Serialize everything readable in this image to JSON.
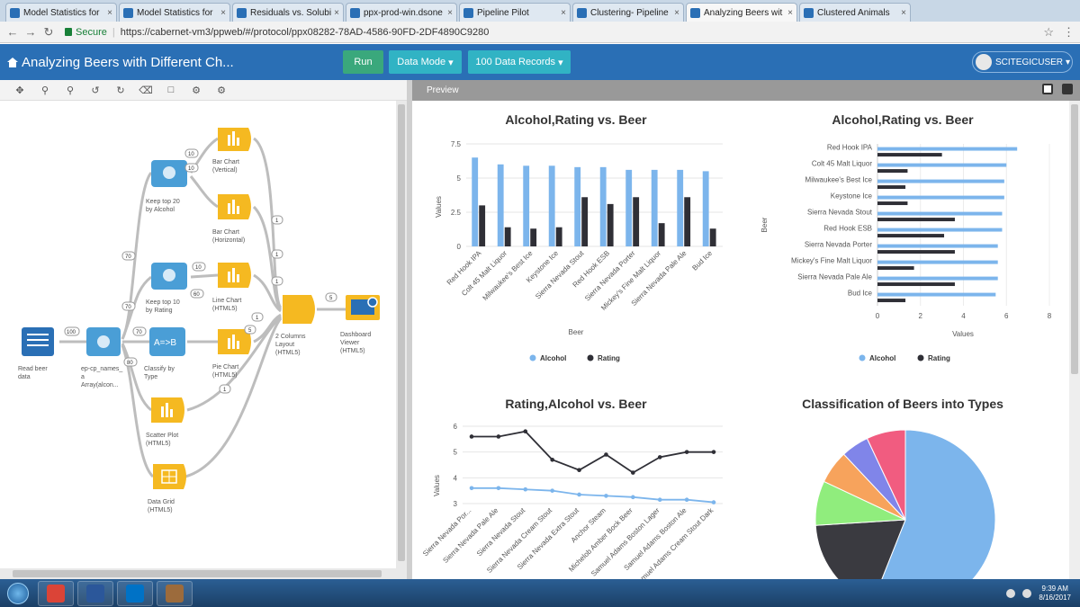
{
  "browser": {
    "tabs": [
      {
        "label": "Model Statistics for"
      },
      {
        "label": "Model Statistics for"
      },
      {
        "label": "Residuals vs. Solubi"
      },
      {
        "label": "ppx-prod-win.dsone"
      },
      {
        "label": "Pipeline Pilot"
      },
      {
        "label": "Clustering- Pipeline"
      },
      {
        "label": "Analyzing Beers wit"
      },
      {
        "label": "Clustered Animals"
      }
    ],
    "active_tab": 6,
    "secure_label": "Secure",
    "url": "https://cabernet-vm3/ppweb/#/protocol/ppx08282-78AD-4586-90FD-2DF4890C9280"
  },
  "app": {
    "title": "Analyzing Beers with Different Ch...",
    "run_label": "Run",
    "data_mode_label": "Data Mode",
    "records_label": "100 Data Records",
    "user_label": "SCITEGICUSER"
  },
  "preview": {
    "label": "Preview"
  },
  "workflow": {
    "nodes": [
      {
        "id": "read",
        "label1": "Read beer",
        "label2": "data"
      },
      {
        "id": "ep",
        "label1": "ep-cp_names_",
        "label2": "a",
        "label3": "Array(alcon..."
      },
      {
        "id": "classify",
        "label1": "Classify by",
        "label2": "Type",
        "glyph": "A=>B"
      },
      {
        "id": "top20",
        "label1": "Keep top 20",
        "label2": "by Alcohol"
      },
      {
        "id": "top10",
        "label1": "Keep top 10",
        "label2": "by Rating"
      },
      {
        "id": "barv",
        "label1": "Bar Chart",
        "label2": "(Vertical)"
      },
      {
        "id": "barh",
        "label1": "Bar Chart",
        "label2": "(Horizontal)"
      },
      {
        "id": "linec",
        "label1": "Line Chart",
        "label2": "(HTML5)"
      },
      {
        "id": "piec",
        "label1": "Pie Chart",
        "label2": "(HTML5)"
      },
      {
        "id": "scatter",
        "label1": "Scatter Plot",
        "label2": "(HTML5)"
      },
      {
        "id": "grid",
        "label1": "Data Grid",
        "label2": "(HTML5)"
      },
      {
        "id": "layout",
        "label1": "2 Columns",
        "label2": "Layout",
        "label3": "(HTML5)"
      },
      {
        "id": "dash",
        "label1": "Dashboard",
        "label2": "Viewer",
        "label3": "(HTML5)"
      }
    ],
    "counts": [
      "10",
      "10",
      "70",
      "10",
      "60",
      "100",
      "70",
      "70",
      "80",
      "1",
      "1",
      "1",
      "5",
      "1",
      "1",
      "5"
    ]
  },
  "chart_data": [
    {
      "type": "bar",
      "title": "Alcohol,Rating vs. Beer",
      "xlabel": "Beer",
      "ylabel": "Values",
      "ylim": [
        0,
        7.5
      ],
      "yticks": [
        "0",
        "2.5",
        "5",
        "7.5"
      ],
      "categories": [
        "Red Hook IPA",
        "Colt 45 Malt Liquor",
        "Milwaukee's Best Ice",
        "Keystone Ice",
        "Sierra Nevada Stout",
        "Red Hook ESB",
        "Sierra Nevada Porter",
        "Mickey's Fine Malt Liquor",
        "Sierra Nevada Pale Ale",
        "Bud Ice"
      ],
      "series": [
        {
          "name": "Alcohol",
          "color": "#7cb5ec",
          "values": [
            6.5,
            6.0,
            5.9,
            5.9,
            5.8,
            5.8,
            5.6,
            5.6,
            5.6,
            5.5
          ]
        },
        {
          "name": "Rating",
          "color": "#2f2f36",
          "values": [
            3.0,
            1.4,
            1.3,
            1.4,
            3.6,
            3.1,
            3.6,
            1.7,
            3.6,
            1.3
          ]
        }
      ],
      "legend": "bottom"
    },
    {
      "type": "bar",
      "orientation": "horizontal",
      "title": "Alcohol,Rating vs. Beer",
      "xlabel": "Values",
      "ylabel": "Beer",
      "xlim": [
        0,
        8
      ],
      "xticks": [
        "0",
        "2",
        "4",
        "6",
        "8"
      ],
      "categories": [
        "Red Hook IPA",
        "Colt 45 Malt Liquor",
        "Milwaukee's Best Ice",
        "Keystone Ice",
        "Sierra Nevada Stout",
        "Red Hook ESB",
        "Sierra Nevada Porter",
        "Mickey's Fine Malt Liquor",
        "Sierra Nevada Pale Ale",
        "Bud Ice"
      ],
      "series": [
        {
          "name": "Alcohol",
          "color": "#7cb5ec",
          "values": [
            6.5,
            6.0,
            5.9,
            5.9,
            5.8,
            5.8,
            5.6,
            5.6,
            5.6,
            5.5
          ]
        },
        {
          "name": "Rating",
          "color": "#2f2f36",
          "values": [
            3.0,
            1.4,
            1.3,
            1.4,
            3.6,
            3.1,
            3.6,
            1.7,
            3.6,
            1.3
          ]
        }
      ],
      "legend": "bottom"
    },
    {
      "type": "line",
      "title": "Rating,Alcohol vs. Beer",
      "ylabel": "Values",
      "ylim": [
        3,
        6
      ],
      "yticks": [
        "3",
        "4",
        "5",
        "6"
      ],
      "categories": [
        "Sierra Nevada Por...",
        "Sierra Nevada Pale Ale",
        "Sierra Nevada Stout",
        "Sierra Nevada Cream Stout",
        "Sierra Nevada Extra Stout",
        "Anchor Steam",
        "Michelob Amber Bock Beer",
        "Samuel Adams Boston Lager",
        "Samuel Adams Boston Ale",
        "Samuel Adams Cream Stout Dark"
      ],
      "series": [
        {
          "name": "Rating",
          "color": "#2f2f36",
          "values": [
            5.6,
            5.6,
            5.8,
            4.7,
            4.3,
            4.9,
            4.2,
            4.8,
            5.0,
            5.0
          ]
        },
        {
          "name": "Alcohol",
          "color": "#7cb5ec",
          "values": [
            3.6,
            3.6,
            3.55,
            3.5,
            3.35,
            3.3,
            3.25,
            3.15,
            3.15,
            3.05
          ]
        }
      ]
    },
    {
      "type": "pie",
      "title": "Classification of Beers into Types",
      "slices": [
        {
          "value": 56,
          "color": "#7cb5ec"
        },
        {
          "value": 18,
          "color": "#3a3a40"
        },
        {
          "value": 8,
          "color": "#90ed7d"
        },
        {
          "value": 6,
          "color": "#f7a35c"
        },
        {
          "value": 5,
          "color": "#8085e9"
        },
        {
          "value": 7,
          "color": "#f15c80"
        }
      ]
    }
  ],
  "taskbar": {
    "apps": [
      {
        "name": "chrome",
        "color": "#db4437"
      },
      {
        "name": "word",
        "color": "#2b579a"
      },
      {
        "name": "outlook",
        "color": "#0072c6"
      },
      {
        "name": "other",
        "color": "#9c6b3c"
      }
    ],
    "time": "9:39 AM",
    "date": "8/16/2017"
  }
}
